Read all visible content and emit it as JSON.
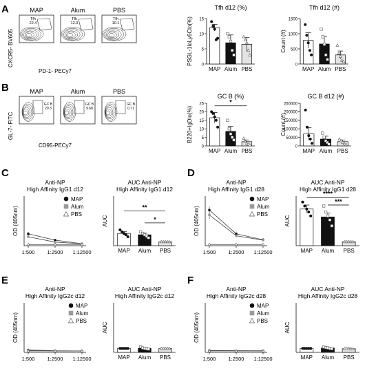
{
  "panels": {
    "A": {
      "letter": "A",
      "flow": {
        "xlabel": "PD-1- PECy7",
        "ylabel": "CXCR5- BV605",
        "plots": [
          {
            "title": "MAP",
            "gate": "Tfh",
            "pct": "22.4"
          },
          {
            "title": "Alum",
            "gate": "Tfh",
            "pct": "12.0"
          },
          {
            "title": "PBS",
            "gate": "Tfh",
            "pct": "10.1"
          }
        ]
      }
    },
    "B": {
      "letter": "B",
      "flow": {
        "xlabel": "CD95-PECy7",
        "ylabel": "GL-7- FITC",
        "plots": [
          {
            "title": "MAP",
            "gate": "GC B",
            "pct": "20.3"
          },
          {
            "title": "Alum",
            "gate": "GC B",
            "pct": "9.68"
          },
          {
            "title": "PBS",
            "gate": "GC B",
            "pct": "0.71"
          }
        ]
      }
    },
    "C": {
      "letter": "C"
    },
    "D": {
      "letter": "D"
    },
    "E": {
      "letter": "E"
    },
    "F": {
      "letter": "F"
    }
  },
  "groups": [
    "MAP",
    "Alum",
    "PBS"
  ],
  "group_colors": {
    "MAP": "#ffffff",
    "Alum": "#111111",
    "PBS": "#e4e4e4"
  },
  "chart_data": [
    {
      "id": "A-pct",
      "type": "bar",
      "title": "Tfh d12 (%)",
      "ylabel": "PSGL-1loLy6Clo(%)",
      "categories": [
        "MAP",
        "Alum",
        "PBS"
      ],
      "ylim": [
        0,
        15
      ],
      "yticks": [
        0,
        5,
        10,
        15
      ],
      "values": [
        12,
        7,
        6.5
      ],
      "errors": [
        1.1,
        2.6,
        2.3
      ],
      "points": [
        [
          14,
          12.5,
          11.5,
          8,
          8.5
        ],
        [
          10,
          9,
          7.5,
          4.5,
          3
        ],
        [
          9,
          8,
          7,
          4.5,
          3
        ]
      ],
      "significance": []
    },
    {
      "id": "A-count",
      "type": "bar",
      "title": "Tfh d12 (#)",
      "ylabel": "Count (#)",
      "categories": [
        "MAP",
        "Alum",
        "PBS"
      ],
      "ylim": [
        0,
        1500
      ],
      "yticks": [
        0,
        500,
        1000,
        1500
      ],
      "values": [
        780,
        660,
        300
      ],
      "errors": [
        250,
        240,
        130
      ],
      "points": [
        [
          1300,
          950,
          700,
          450,
          300
        ],
        [
          1150,
          900,
          650,
          300,
          150
        ],
        [
          620,
          350,
          250,
          120,
          80
        ]
      ],
      "significance": []
    },
    {
      "id": "B-pct",
      "type": "bar",
      "title": "GC B (%)",
      "ylabel": "B220+IgDlo(%)",
      "categories": [
        "MAP",
        "Alum",
        "PBS"
      ],
      "ylim": [
        0,
        25
      ],
      "yticks": [
        0,
        5,
        10,
        15,
        20,
        25
      ],
      "values": [
        16.5,
        8.5,
        2.5
      ],
      "errors": [
        3,
        3,
        1
      ],
      "points": [
        [
          20,
          19,
          17,
          15,
          11
        ],
        [
          15,
          10,
          7,
          5,
          3.5
        ],
        [
          4.5,
          2.5,
          1.5,
          1,
          0.5
        ]
      ],
      "significance": [
        {
          "from": 0,
          "to": 2,
          "label": "*",
          "y": 23.5
        }
      ]
    },
    {
      "id": "B-count",
      "type": "bar",
      "title": "GC B d12 (#)",
      "ylabel": "Count (#)",
      "categories": [
        "MAP",
        "Alum",
        "PBS"
      ],
      "ylim": [
        0,
        250000
      ],
      "yticks": [
        0,
        50000,
        100000,
        150000,
        200000,
        250000
      ],
      "values": [
        70000,
        40000,
        25000
      ],
      "errors": [
        37000,
        17000,
        10000
      ],
      "points": [
        [
          210000,
          110000,
          60000,
          40000,
          15000
        ],
        [
          75000,
          50000,
          30000,
          20000,
          10000
        ],
        [
          40000,
          30000,
          20000,
          12000,
          8000
        ]
      ],
      "significance": []
    },
    {
      "id": "C-line",
      "type": "line",
      "title": "Anti-NP",
      "subtitle": "High Affinity IgG1 d12",
      "ylabel": "OD (405nm)",
      "categories": [
        "1:500",
        "1:2500",
        "1:12500"
      ],
      "ylim": [
        0,
        2.5
      ],
      "series": [
        {
          "name": "MAP",
          "values": [
            0.6,
            0.28,
            0.1
          ],
          "errors": [
            0.08,
            0.05,
            0.02
          ]
        },
        {
          "name": "Alum",
          "values": [
            0.45,
            0.18,
            0.1
          ],
          "errors": [
            0.06,
            0.04,
            0.02
          ]
        },
        {
          "name": "PBS",
          "values": [
            0.06,
            0.06,
            0.06
          ],
          "errors": [
            0.01,
            0.01,
            0.01
          ]
        }
      ]
    },
    {
      "id": "C-auc",
      "type": "bar",
      "title": "AUC Anti-NP",
      "subtitle": "High Affinity IgG1 d12",
      "ylabel": "AUC",
      "categories": [
        "MAP",
        "Alum",
        "PBS"
      ],
      "ylim": [
        0,
        2.5
      ],
      "values": [
        0.62,
        0.55,
        0.2
      ],
      "errors": [
        0.1,
        0.08,
        0.01
      ],
      "points": [
        [
          0.8,
          0.7,
          0.62,
          0.55,
          0.45
        ],
        [
          0.7,
          0.62,
          0.55,
          0.48,
          0.4
        ],
        [
          0.2,
          0.2,
          0.2,
          0.2,
          0.2
        ]
      ],
      "significance": [
        {
          "from": 0,
          "to": 2,
          "label": "**",
          "y": 1.75
        },
        {
          "from": 1,
          "to": 2,
          "label": "*",
          "y": 1.15
        }
      ]
    },
    {
      "id": "D-line",
      "type": "line",
      "title": "Anti-NP",
      "subtitle": "High Affinity IgG1 d28",
      "ylabel": "OD (405nm)",
      "categories": [
        "1:500",
        "1:2500",
        "1:12500"
      ],
      "ylim": [
        0,
        2.5
      ],
      "series": [
        {
          "name": "MAP",
          "values": [
            1.8,
            0.6,
            0.3
          ],
          "errors": [
            0.18,
            0.06,
            0.04
          ]
        },
        {
          "name": "Alum",
          "values": [
            1.55,
            0.5,
            0.28
          ],
          "errors": [
            0.2,
            0.06,
            0.04
          ]
        },
        {
          "name": "PBS",
          "values": [
            0.06,
            0.06,
            0.06
          ],
          "errors": [
            0.01,
            0.01,
            0.01
          ]
        }
      ],
      "legend": [
        "MAP",
        "Alum",
        "PBS"
      ]
    },
    {
      "id": "D-auc",
      "type": "bar",
      "title": "AUC Anti-NP",
      "subtitle": "High Affinity IgG1 d28",
      "ylabel": "AUC",
      "categories": [
        "MAP",
        "Alum",
        "PBS"
      ],
      "ylim": [
        0,
        2.5
      ],
      "values": [
        1.85,
        1.45,
        0.2
      ],
      "errors": [
        0.2,
        0.2,
        0.01
      ],
      "points": [
        [
          2.2,
          2.0,
          1.85,
          1.7,
          1.5
        ],
        [
          2.0,
          1.7,
          1.5,
          1.3,
          1.0
        ],
        [
          0.2,
          0.2,
          0.2,
          0.2,
          0.2
        ]
      ],
      "significance": [
        {
          "from": 0,
          "to": 2,
          "label": "****",
          "y": 2.45
        },
        {
          "from": 1,
          "to": 2,
          "label": "***",
          "y": 2.05
        }
      ]
    },
    {
      "id": "E-line",
      "type": "line",
      "title": "Anti-NP",
      "subtitle": "High Affinity IgG2c d12",
      "ylabel": "OD (405nm)",
      "categories": [
        "1:500",
        "1:2500",
        "1:12500"
      ],
      "ylim": [
        0,
        2.5
      ],
      "series": [
        {
          "name": "MAP",
          "values": [
            0.12,
            0.08,
            0.07
          ],
          "errors": [
            0.02,
            0.01,
            0.01
          ]
        },
        {
          "name": "Alum",
          "values": [
            0.1,
            0.07,
            0.07
          ],
          "errors": [
            0.02,
            0.01,
            0.01
          ]
        },
        {
          "name": "PBS",
          "values": [
            0.07,
            0.07,
            0.07
          ],
          "errors": [
            0.01,
            0.01,
            0.01
          ]
        }
      ],
      "legend": [
        "MAP",
        "Alum",
        "PBS"
      ]
    },
    {
      "id": "E-auc",
      "type": "bar",
      "title": "AUC Anti-NP",
      "subtitle": "High Affinity IgG2c d12",
      "ylabel": "AUC",
      "categories": [
        "MAP",
        "Alum",
        "PBS"
      ],
      "ylim": [
        0,
        2.5
      ],
      "values": [
        0.2,
        0.2,
        0.2
      ],
      "errors": [
        0.01,
        0.04,
        0.01
      ],
      "points": [
        [
          0.2,
          0.2,
          0.2,
          0.2,
          0.2
        ],
        [
          0.3,
          0.22,
          0.2,
          0.18,
          0.16
        ],
        [
          0.2,
          0.2,
          0.2,
          0.2,
          0.2
        ]
      ],
      "significance": []
    },
    {
      "id": "F-line",
      "type": "line",
      "title": "Anti-NP",
      "subtitle": "High Affinity IgG2c d28",
      "ylabel": "OD (405nm)",
      "categories": [
        "1:500",
        "1:2500",
        "1:12500"
      ],
      "ylim": [
        0,
        2.5
      ],
      "series": [
        {
          "name": "MAP",
          "values": [
            0.1,
            0.08,
            0.08
          ],
          "errors": [
            0.01,
            0.01,
            0.01
          ]
        },
        {
          "name": "Alum",
          "values": [
            0.09,
            0.08,
            0.07
          ],
          "errors": [
            0.01,
            0.01,
            0.01
          ]
        },
        {
          "name": "PBS",
          "values": [
            0.07,
            0.07,
            0.07
          ],
          "errors": [
            0.01,
            0.01,
            0.01
          ]
        }
      ],
      "legend": [
        "MAP",
        "Alum",
        "PBS"
      ]
    },
    {
      "id": "F-auc",
      "type": "bar",
      "title": "AUC Anti-NP",
      "subtitle": "High Affinity IgG2c d28",
      "ylabel": "AUC",
      "categories": [
        "MAP",
        "Alum",
        "PBS"
      ],
      "ylim": [
        0,
        2.5
      ],
      "values": [
        0.2,
        0.22,
        0.18
      ],
      "errors": [
        0.01,
        0.04,
        0.03
      ],
      "points": [
        [
          0.2,
          0.2,
          0.2,
          0.2,
          0.2
        ],
        [
          0.26,
          0.24,
          0.22,
          0.2,
          0.18
        ],
        [
          0.2,
          0.19,
          0.18,
          0.18,
          0.17
        ]
      ],
      "significance": []
    }
  ]
}
